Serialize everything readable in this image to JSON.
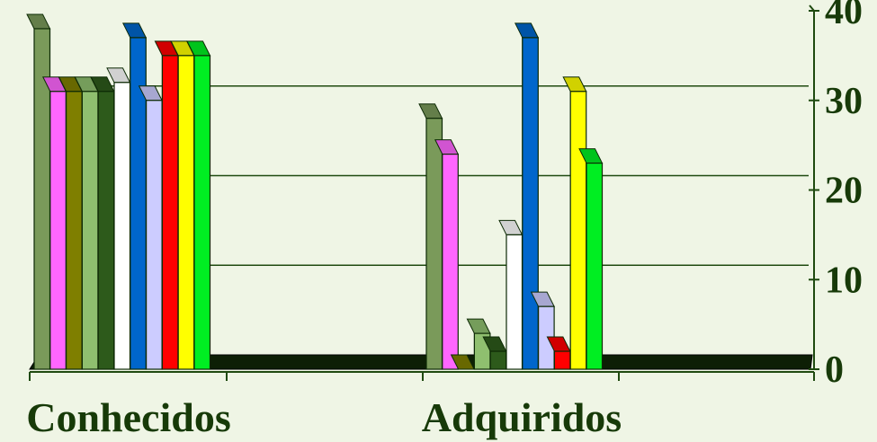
{
  "chart_data": {
    "type": "bar",
    "categories": [
      "Conhecidos",
      "Adquiridos"
    ],
    "series": [
      {
        "color": "#7a9a5a",
        "values": [
          38,
          28
        ]
      },
      {
        "color": "#ff66ff",
        "values": [
          31,
          24
        ]
      },
      {
        "color": "#7f7f00",
        "values": [
          31,
          0
        ]
      },
      {
        "color": "#8fbf6f",
        "values": [
          31,
          4
        ]
      },
      {
        "color": "#2d5a1b",
        "values": [
          31,
          2
        ]
      },
      {
        "color": "#ffffff",
        "values": [
          32,
          15
        ]
      },
      {
        "color": "#0066cc",
        "values": [
          37,
          37
        ]
      },
      {
        "color": "#ccccff",
        "values": [
          30,
          7
        ]
      },
      {
        "color": "#ff0000",
        "values": [
          35,
          2
        ]
      },
      {
        "color": "#ffff00",
        "values": [
          35,
          31
        ]
      },
      {
        "color": "#00ee22",
        "values": [
          35,
          23
        ]
      }
    ],
    "yticks": [
      "0",
      "10",
      "20",
      "30",
      "40"
    ],
    "ylim": [
      0,
      40
    ],
    "y_axis_side": "right",
    "grid": true,
    "style": "3d-bars"
  }
}
